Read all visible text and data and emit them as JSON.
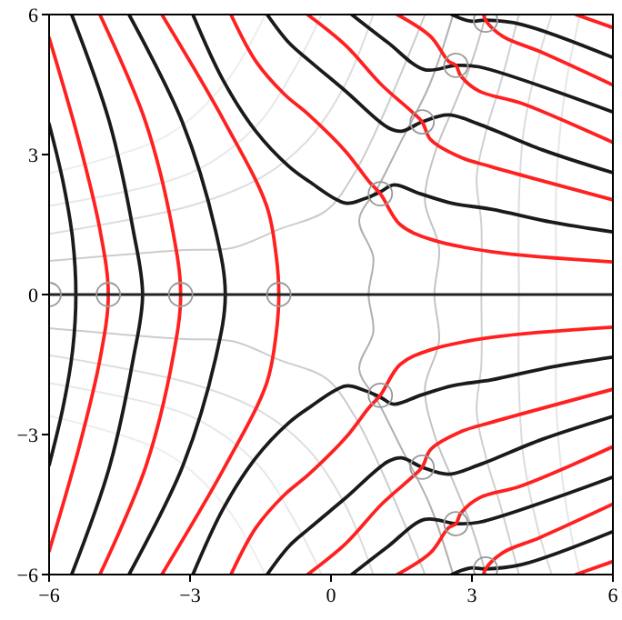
{
  "chart_data": {
    "type": "line",
    "xlim": [
      -6,
      6
    ],
    "ylim": [
      -6,
      6
    ],
    "xticks": [
      {
        "value": -6,
        "label": "−6"
      },
      {
        "value": -3,
        "label": "−3"
      },
      0,
      3,
      6
    ],
    "yticks": [
      {
        "value": -6,
        "label": "−6"
      },
      {
        "value": -3,
        "label": "−3"
      },
      0,
      3,
      6
    ],
    "grid": false,
    "ref_lines": [
      {
        "axis": "y",
        "value": 0,
        "color": "#222222"
      }
    ],
    "series": [
      {
        "color": "#cccccc",
        "x": [
          -6,
          -3.2,
          -2.1,
          -1.1,
          -0.1,
          0.5,
          1.0,
          1.6,
          2.0
        ],
        "values": [
          0.72,
          0.95,
          1.0,
          1.4,
          1.8,
          2.6,
          3.6,
          5,
          6
        ]
      },
      {
        "color": "#cccccc",
        "x": [
          -6,
          -3.2,
          -2.1,
          -1.1,
          -0.1,
          0.5,
          1.0,
          1.6,
          2.0
        ],
        "values": [
          -0.72,
          -0.95,
          -1.0,
          -1.4,
          -1.8,
          -2.6,
          -3.6,
          -5,
          -6
        ]
      },
      {
        "color": "#dddddd",
        "x": [
          -6,
          -3,
          -1.5,
          -0.5,
          0.3,
          0.9
        ],
        "values": [
          1.3,
          1.9,
          2.5,
          3.3,
          4.5,
          6
        ]
      },
      {
        "color": "#dddddd",
        "x": [
          -6,
          -3,
          -1.5,
          -0.5,
          0.3,
          0.9
        ],
        "values": [
          -1.3,
          -1.9,
          -2.5,
          -3.3,
          -4.5,
          -6
        ]
      },
      {
        "color": "#e8e8e8",
        "x": [
          -6,
          -3,
          -1.6,
          -0.8,
          -0.2
        ],
        "values": [
          1.9,
          2.6,
          3.6,
          4.8,
          6
        ]
      },
      {
        "color": "#e8e8e8",
        "x": [
          -6,
          -3,
          -1.6,
          -0.8,
          -0.2
        ],
        "values": [
          -1.9,
          -2.6,
          -3.6,
          -4.8,
          -6
        ]
      },
      {
        "color": "#eeeeee",
        "x": [
          -6,
          -3.5,
          -2.2,
          -1.4
        ],
        "values": [
          2.6,
          3.4,
          4.6,
          6
        ]
      },
      {
        "color": "#eeeeee",
        "x": [
          -6,
          -3.5,
          -2.2,
          -1.4
        ],
        "values": [
          -2.6,
          -3.4,
          -4.6,
          -6
        ]
      },
      {
        "color": "#b0b0b0",
        "x": [
          2.6,
          2.1,
          1.5,
          1.0,
          0.6,
          0.9,
          0.8,
          0.9,
          0.6,
          1.0,
          1.5,
          2.1,
          2.6
        ],
        "values": [
          6,
          4.5,
          3.3,
          2.3,
          1.6,
          0.8,
          0,
          -0.8,
          -1.6,
          -2.3,
          -3.3,
          -4.5,
          -6
        ]
      },
      {
        "color": "#c4c4c4",
        "x": [
          3.3,
          3.0,
          2.6,
          2.2,
          2.0,
          2.3,
          2.2,
          2.3,
          2.0,
          2.2,
          2.6,
          3.0,
          3.3
        ],
        "values": [
          6,
          5,
          4,
          3,
          2,
          1,
          0,
          -1,
          -2,
          -3,
          -4,
          -5,
          -6
        ]
      },
      {
        "color": "#d0d0d0",
        "x": [
          4.0,
          3.6,
          3.3,
          3.1,
          3.2,
          3.2,
          3.2,
          3.1,
          3.3,
          3.6,
          4.0
        ],
        "values": [
          6,
          4.5,
          3.5,
          2.5,
          1.5,
          0,
          -1.5,
          -2.5,
          -3.5,
          -4.5,
          -6
        ]
      },
      {
        "color": "#dcdcdc",
        "x": [
          4.7,
          4.4,
          4.1,
          4.0,
          4.0,
          4.0,
          4.1,
          4.4,
          4.7
        ],
        "values": [
          6,
          5,
          3.5,
          2,
          0,
          -2,
          -3.5,
          -5,
          -6
        ]
      },
      {
        "color": "#e6e6e6",
        "x": [
          5.3,
          5.0,
          4.8,
          4.8,
          4.8,
          5.0,
          5.3
        ],
        "values": [
          6,
          4.5,
          2.5,
          0,
          -2.5,
          -4.5,
          -6
        ]
      },
      {
        "color": "#1a1a1a",
        "x": [
          -6,
          -5.7,
          -5.5,
          -5.43,
          -5.5,
          -5.7,
          -6
        ],
        "values": [
          3.66,
          2.4,
          1.2,
          0,
          -1.2,
          -2.4,
          -3.66
        ]
      },
      {
        "color": "#ff2020",
        "x": [
          -6,
          -5.37,
          -4.92,
          -4.74,
          -4.92,
          -5.37,
          -6
        ],
        "values": [
          5.5,
          3.3,
          1.4,
          0,
          -1.4,
          -3.3,
          -5.5
        ]
      },
      {
        "color": "#1a1a1a",
        "x": [
          -5.52,
          -4.72,
          -4.21,
          -4.01,
          -4.21,
          -4.72,
          -5.52
        ],
        "values": [
          6,
          3.71,
          1.38,
          0,
          -1.38,
          -3.71,
          -6
        ]
      },
      {
        "color": "#ff2020",
        "x": [
          -4.92,
          -3.95,
          -3.37,
          -3.2,
          -3.37,
          -3.95,
          -4.92
        ],
        "values": [
          6,
          3.71,
          1.38,
          0,
          -1.38,
          -3.71,
          -6
        ]
      },
      {
        "color": "#1a1a1a",
        "x": [
          -4.3,
          -3.17,
          -2.46,
          -2.25,
          -2.46,
          -3.17,
          -4.3
        ],
        "values": [
          6,
          3.71,
          1.38,
          0,
          -1.38,
          -3.71,
          -6
        ]
      },
      {
        "color": "#ff2020",
        "x": [
          -3.6,
          -2.27,
          -1.37,
          -1.17,
          -1.11,
          -1.17,
          -1.37,
          -2.27,
          -3.6
        ],
        "values": [
          6,
          3.71,
          1.9,
          0.86,
          0,
          -0.86,
          -1.9,
          -3.71,
          -6
        ]
      },
      {
        "color": "#1a1a1a",
        "x": [
          -2.94,
          -2.3,
          -1.6,
          -0.9,
          -0.46,
          0.31,
          0.7,
          1.05,
          1.34,
          1.9,
          2.6,
          3.41,
          4.7,
          6
        ],
        "values": [
          6,
          4.6,
          3.5,
          2.75,
          2.42,
          1.96,
          2.05,
          2.2,
          2.35,
          2.16,
          1.95,
          1.83,
          1.55,
          1.34
        ]
      },
      {
        "color": "#1a1a1a",
        "x": [
          -2.94,
          -2.3,
          -1.6,
          -0.9,
          -0.46,
          0.31,
          0.7,
          1.05,
          1.34,
          1.9,
          2.6,
          3.41,
          4.7,
          6
        ],
        "values": [
          -6,
          -4.6,
          -3.5,
          -2.75,
          -2.42,
          -1.96,
          -2.05,
          -2.2,
          -2.35,
          -2.16,
          -1.95,
          -1.83,
          -1.55,
          -1.34
        ]
      },
      {
        "color": "#ff2020",
        "x": [
          -2.13,
          -1.6,
          -1.0,
          -0.46,
          0.31,
          0.81,
          1.05,
          1.47,
          2.13,
          3.41,
          6
        ],
        "values": [
          6,
          5.0,
          4.3,
          3.84,
          3.07,
          2.42,
          2.16,
          1.5,
          1.18,
          0.92,
          0.7
        ]
      },
      {
        "color": "#ff2020",
        "x": [
          -2.13,
          -1.6,
          -1.0,
          -0.46,
          0.31,
          0.81,
          1.05,
          1.47,
          2.13,
          3.41,
          6
        ],
        "values": [
          -6,
          -5.0,
          -4.3,
          -3.84,
          -3.07,
          -2.42,
          -2.16,
          -1.5,
          -1.18,
          -0.92,
          -0.7
        ]
      },
      {
        "color": "#1a1a1a",
        "x": [
          -1.36,
          -0.9,
          -0.46,
          0.31,
          1.21,
          1.5,
          1.94,
          2.5,
          3.15,
          4.5,
          6
        ],
        "values": [
          6,
          5.4,
          5.01,
          4.36,
          3.58,
          3.5,
          3.7,
          3.85,
          3.65,
          3.1,
          2.61
        ]
      },
      {
        "color": "#1a1a1a",
        "x": [
          -1.36,
          -0.9,
          -0.46,
          0.31,
          1.21,
          1.5,
          1.94,
          2.5,
          3.15,
          4.5,
          6
        ],
        "values": [
          -6,
          -5.4,
          -5.01,
          -4.36,
          -3.58,
          -3.5,
          -3.7,
          -3.85,
          -3.65,
          -3.1,
          -2.61
        ]
      },
      {
        "color": "#ff2020",
        "x": [
          -0.5,
          0.31,
          1.08,
          1.73,
          1.94,
          2.12,
          2.76,
          3.41,
          6
        ],
        "values": [
          6,
          5.34,
          4.49,
          3.91,
          3.7,
          3.32,
          2.94,
          2.74,
          2.03
        ]
      },
      {
        "color": "#ff2020",
        "x": [
          -0.5,
          0.31,
          1.08,
          1.73,
          1.94,
          2.12,
          2.76,
          3.41,
          6
        ],
        "values": [
          -6,
          -5.34,
          -4.49,
          -3.91,
          -3.7,
          -3.32,
          -2.94,
          -2.74,
          -2.03
        ]
      },
      {
        "color": "#1a1a1a",
        "x": [
          0.44,
          1.21,
          1.99,
          2.66,
          3.15,
          6
        ],
        "values": [
          6,
          5.4,
          4.82,
          4.91,
          4.88,
          3.91
        ]
      },
      {
        "color": "#1a1a1a",
        "x": [
          0.44,
          1.21,
          1.99,
          2.66,
          3.15,
          6
        ],
        "values": [
          -6,
          -5.4,
          -4.82,
          -4.91,
          -4.88,
          -3.91
        ]
      },
      {
        "color": "#ff2020",
        "x": [
          1.41,
          2.12,
          2.5,
          2.66,
          2.76,
          3.15,
          4.05,
          6
        ],
        "values": [
          6,
          5.53,
          5.0,
          4.91,
          4.69,
          4.36,
          4.1,
          3.26
        ]
      },
      {
        "color": "#ff2020",
        "x": [
          1.41,
          2.12,
          2.5,
          2.66,
          2.76,
          3.15,
          4.05,
          6
        ],
        "values": [
          -6,
          -5.53,
          -5.0,
          -4.91,
          -4.69,
          -4.36,
          -4.1,
          -3.26
        ]
      },
      {
        "color": "#1a1a1a",
        "x": [
          2.57,
          2.96,
          3.29,
          4.05,
          6
        ],
        "values": [
          6,
          5.86,
          5.88,
          5.79,
          5.08
        ]
      },
      {
        "color": "#1a1a1a",
        "x": [
          2.57,
          2.96,
          3.29,
          4.05,
          6
        ],
        "values": [
          -6,
          -5.86,
          -5.88,
          -5.79,
          -5.08
        ]
      },
      {
        "color": "#ff2020",
        "x": [
          3.25,
          3.29,
          3.66,
          4.44,
          6
        ],
        "values": [
          6,
          5.88,
          5.53,
          5.21,
          4.49
        ]
      },
      {
        "color": "#ff2020",
        "x": [
          3.25,
          3.29,
          3.66,
          4.44,
          6
        ],
        "values": [
          -6,
          -5.88,
          -5.53,
          -5.21,
          -4.49
        ]
      },
      {
        "color": "#ff2020",
        "x": [
          5.21,
          6
        ],
        "values": [
          6,
          5.72
        ]
      },
      {
        "color": "#ff2020",
        "x": [
          5.21,
          6
        ],
        "values": [
          -6,
          -5.72
        ]
      },
      {
        "type": "scatter",
        "marker": "circle",
        "color": "#999999",
        "x": [
          -6,
          -4.74,
          -3.2,
          -1.11,
          1.05,
          1.05,
          1.94,
          1.94,
          2.66,
          2.66,
          3.29,
          3.29
        ],
        "values": [
          0,
          0,
          0,
          0,
          2.16,
          -2.16,
          3.7,
          -3.7,
          4.91,
          -4.91,
          5.88,
          -5.88
        ]
      }
    ]
  }
}
